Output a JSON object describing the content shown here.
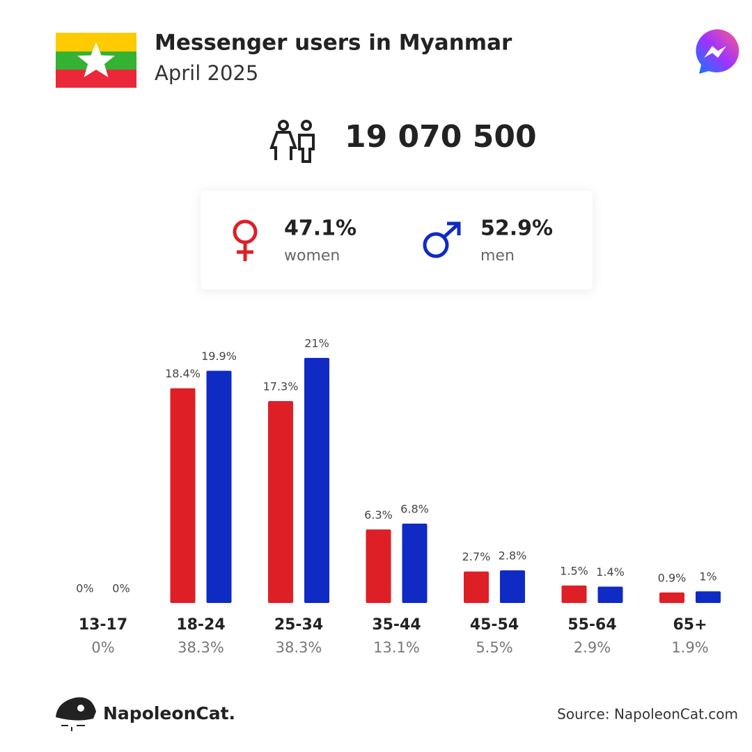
{
  "header": {
    "title": "Messenger users in Myanmar",
    "subtitle": "April 2025"
  },
  "total": "19 070 500",
  "gender": {
    "women": {
      "share": "47.1%",
      "label": "women"
    },
    "men": {
      "share": "52.9%",
      "label": "men"
    }
  },
  "chart_data": {
    "type": "bar",
    "categories": [
      "13-17",
      "18-24",
      "25-34",
      "35-44",
      "45-54",
      "55-64",
      "65+"
    ],
    "category_totals": [
      "0%",
      "38.3%",
      "38.3%",
      "13.1%",
      "5.5%",
      "2.9%",
      "1.9%"
    ],
    "series": [
      {
        "color": "#de1f26",
        "values": [
          0,
          18.4,
          17.3,
          6.3,
          2.7,
          1.5,
          0.9
        ],
        "value_labels": [
          "0%",
          "18.4%",
          "17.3%",
          "6.3%",
          "2.7%",
          "1.5%",
          "0.9%"
        ]
      },
      {
        "color": "#0f2bc4",
        "values": [
          0,
          19.9,
          21,
          6.8,
          2.8,
          1.4,
          1
        ],
        "value_labels": [
          "0%",
          "19.9%",
          "21%",
          "6.8%",
          "2.8%",
          "1.4%",
          "1%"
        ]
      }
    ],
    "ylim": [
      0,
      21
    ]
  },
  "footer": {
    "brand": "NapoleonCat.",
    "source": "Source: NapoleonCat.com"
  }
}
